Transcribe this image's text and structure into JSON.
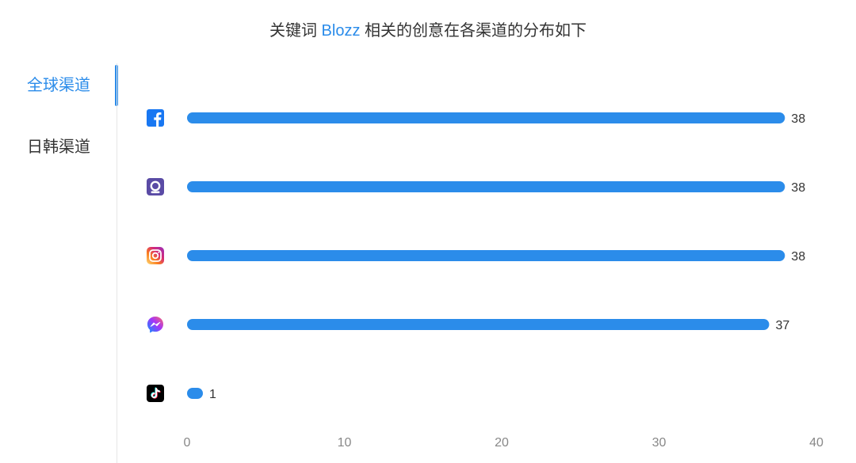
{
  "title": {
    "before": "关键词",
    "keyword": "Blozz",
    "after": "相关的创意在各渠道的分布如下"
  },
  "tabs": [
    {
      "label": "全球渠道",
      "active": true
    },
    {
      "label": "日韩渠道",
      "active": false
    }
  ],
  "colors": {
    "accent": "#2b8cea",
    "bar": "#2b8cea",
    "facebook": "#1877f2",
    "audience_network": "#5a4ba5",
    "messenger_start": "#0695ff",
    "messenger_end": "#ff6968",
    "tiktok": "#000000"
  },
  "chart_data": {
    "type": "bar",
    "orientation": "horizontal",
    "categories": [
      "Facebook",
      "Audience Network",
      "Instagram",
      "Messenger",
      "TikTok"
    ],
    "category_icons": [
      "facebook-icon",
      "audience-network-icon",
      "instagram-icon",
      "messenger-icon",
      "tiktok-icon"
    ],
    "values": [
      38,
      38,
      38,
      37,
      1
    ],
    "xlim": [
      0,
      40
    ],
    "xticks": [
      0,
      10,
      20,
      30,
      40
    ],
    "grid": false,
    "data_labels": true
  }
}
